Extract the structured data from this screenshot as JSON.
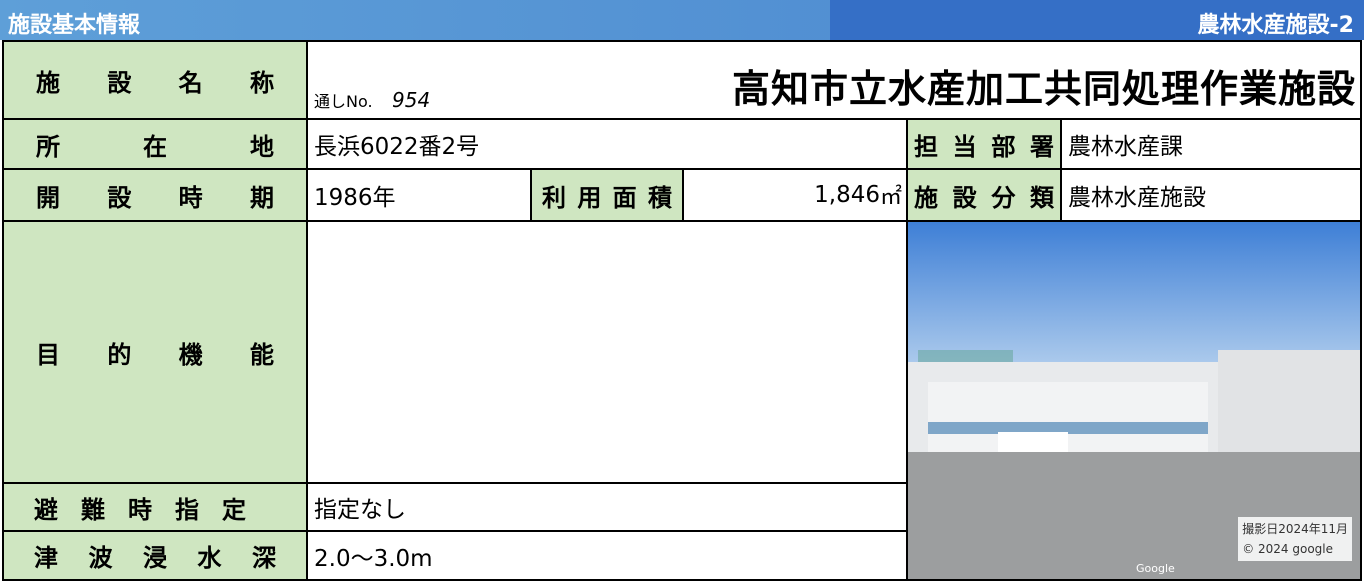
{
  "header": {
    "title": "施設基本情報",
    "category_code": "農林水産施設-2"
  },
  "rows": {
    "name": {
      "label": "施設名称",
      "serial_label": "通しNo.",
      "serial": "954",
      "value": "高知市立水産加工共同処理作業施設"
    },
    "location": {
      "label": "所在地",
      "value": "長浜6022番2号",
      "dept_label": "担当部署",
      "dept": "農林水産課"
    },
    "opened": {
      "label": "開設時期",
      "value": "1986年",
      "area_label": "利用面積",
      "area": "1,846",
      "area_unit": "㎡",
      "class_label": "施設分類",
      "class": "農林水産施設"
    },
    "purpose": {
      "label": "目的機能",
      "value": ""
    },
    "evacuation": {
      "label": "避難時指定",
      "value": "指定なし"
    },
    "tsunami": {
      "label": "津波浸水深",
      "value": "2.0〜3.0m"
    }
  },
  "photo": {
    "date": "撮影日2024年11月",
    "copyright": "© 2024 google",
    "watermark": "Google"
  }
}
